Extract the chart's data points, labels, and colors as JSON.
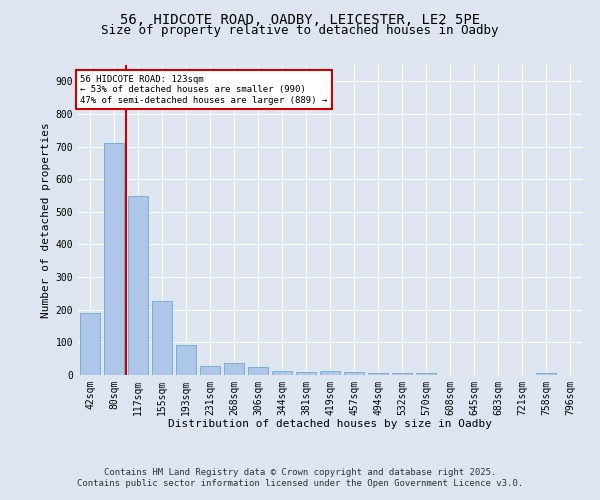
{
  "title_line1": "56, HIDCOTE ROAD, OADBY, LEICESTER, LE2 5PE",
  "title_line2": "Size of property relative to detached houses in Oadby",
  "xlabel": "Distribution of detached houses by size in Oadby",
  "ylabel": "Number of detached properties",
  "categories": [
    "42sqm",
    "80sqm",
    "117sqm",
    "155sqm",
    "193sqm",
    "231sqm",
    "268sqm",
    "306sqm",
    "344sqm",
    "381sqm",
    "419sqm",
    "457sqm",
    "494sqm",
    "532sqm",
    "570sqm",
    "608sqm",
    "645sqm",
    "683sqm",
    "721sqm",
    "758sqm",
    "796sqm"
  ],
  "values": [
    190,
    712,
    548,
    226,
    92,
    28,
    38,
    24,
    12,
    10,
    11,
    8,
    7,
    6,
    5,
    0,
    0,
    0,
    0,
    5,
    0
  ],
  "bar_color": "#aec6e8",
  "bar_edge_color": "#5a9fd4",
  "highlight_color": "#cc0000",
  "vline_x": 1.5,
  "annotation_text": "56 HIDCOTE ROAD: 123sqm\n← 53% of detached houses are smaller (990)\n47% of semi-detached houses are larger (889) →",
  "annotation_box_color": "#ffffff",
  "annotation_box_edgecolor": "#cc0000",
  "ylim": [
    0,
    950
  ],
  "yticks": [
    0,
    100,
    200,
    300,
    400,
    500,
    600,
    700,
    800,
    900
  ],
  "background_color": "#dde6f0",
  "plot_bg_color": "#dde6f0",
  "footer_line1": "Contains HM Land Registry data © Crown copyright and database right 2025.",
  "footer_line2": "Contains public sector information licensed under the Open Government Licence v3.0.",
  "title_fontsize": 10,
  "subtitle_fontsize": 9,
  "tick_fontsize": 7,
  "xlabel_fontsize": 8,
  "ylabel_fontsize": 8,
  "footer_fontsize": 6.5
}
